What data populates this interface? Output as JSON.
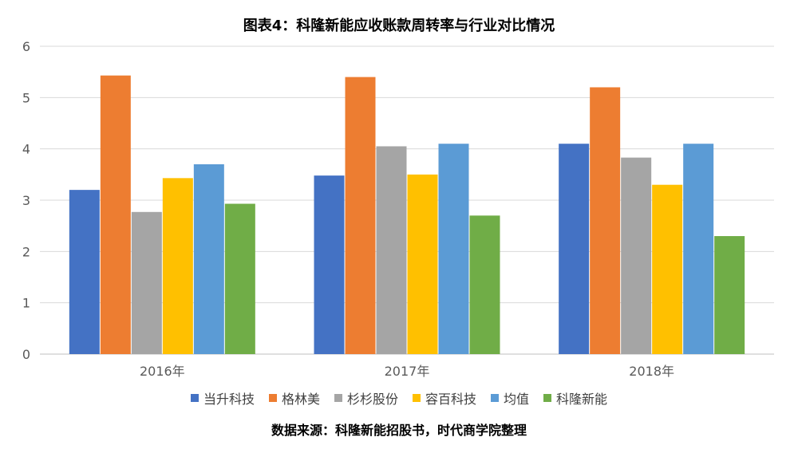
{
  "chart_data": {
    "type": "bar",
    "title": "图表4：科隆新能应收账款周转率与行业对比情况",
    "categories": [
      "2016年",
      "2017年",
      "2018年"
    ],
    "series": [
      {
        "name": "当升科技",
        "color": "#4472c4",
        "values": [
          3.2,
          3.48,
          4.1
        ]
      },
      {
        "name": "格林美",
        "color": "#ed7d31",
        "values": [
          5.43,
          5.4,
          5.2
        ]
      },
      {
        "name": "杉杉股份",
        "color": "#a5a5a5",
        "values": [
          2.77,
          4.05,
          3.83
        ]
      },
      {
        "name": "容百科技",
        "color": "#ffc000",
        "values": [
          3.43,
          3.5,
          3.3
        ]
      },
      {
        "name": "均值",
        "color": "#5b9bd5",
        "values": [
          3.7,
          4.1,
          4.1
        ]
      },
      {
        "name": "科隆新能",
        "color": "#70ad47",
        "values": [
          2.93,
          2.7,
          2.3
        ]
      }
    ],
    "ylim": [
      0,
      6
    ],
    "yticks": [
      "0",
      "1",
      "2",
      "3",
      "4",
      "5",
      "6"
    ],
    "grid": true,
    "legend_position": "bottom"
  },
  "source_note": "数据来源：科隆新能招股书，时代商学院整理"
}
